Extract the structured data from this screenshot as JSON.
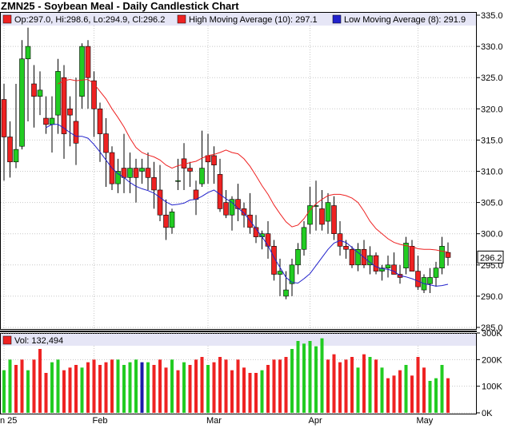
{
  "title": "ZMN25 - Soybean Meal - Daily Candlestick Chart",
  "legend": {
    "ohlc": "Op:297.0, Hi:298.6, Lo:294.9, Cl:296.2",
    "high_ma": "High Moving Average (10): 297.1",
    "low_ma": "Low Moving Average (8): 291.9",
    "volume": "Vol: 132,494"
  },
  "last_price_label": "296.2",
  "colors": {
    "up": "#22cc22",
    "down": "#ee2222",
    "high_ma": "#ee2222",
    "low_ma": "#2222cc",
    "neutral_volume": "#1a1aaa",
    "legend_band": "#e6e6f6",
    "grid": "#c8c8c8"
  },
  "chart_data": [
    {
      "type": "candlestick",
      "x_ticks": [
        "n 25",
        "Feb",
        "Mar",
        "Apr",
        "May"
      ],
      "ylim": [
        285.0,
        335.0
      ],
      "y_ticks": [
        "335.0",
        "330.0",
        "325.0",
        "320.0",
        "315.0",
        "310.0",
        "305.0",
        "300.0",
        "295.0",
        "290.0",
        "285.0"
      ],
      "candles": [
        [
          321.5,
          324.0,
          308.5,
          315.5
        ],
        [
          315.5,
          318.0,
          309.0,
          311.5
        ],
        [
          311.5,
          324.0,
          310.5,
          313.5
        ],
        [
          314.0,
          331.0,
          313.5,
          328.0
        ],
        [
          328.0,
          333.0,
          318.0,
          330.0
        ],
        [
          324.0,
          327.0,
          317.0,
          322.0
        ],
        [
          322.0,
          326.0,
          319.0,
          323.0
        ],
        [
          318.5,
          322.0,
          316.0,
          317.5
        ],
        [
          317.5,
          322.0,
          313.0,
          318.5
        ],
        [
          319.0,
          328.0,
          316.0,
          326.0
        ],
        [
          325.0,
          327.0,
          312.0,
          316.0
        ],
        [
          320.0,
          322.0,
          314.0,
          319.0
        ],
        [
          318.0,
          325.0,
          311.0,
          314.5
        ],
        [
          322.0,
          330.5,
          320.0,
          330.0
        ],
        [
          330.0,
          331.0,
          320.0,
          325.0
        ],
        [
          324.5,
          326.0,
          315.5,
          320.0
        ],
        [
          320.0,
          321.0,
          311.5,
          316.0
        ],
        [
          316.0,
          318.5,
          307.5,
          313.0
        ],
        [
          313.0,
          314.0,
          307.0,
          308.0
        ],
        [
          308.0,
          312.0,
          306.5,
          310.0
        ],
        [
          310.5,
          316.0,
          306.5,
          309.0
        ],
        [
          309.0,
          313.0,
          306.5,
          310.5
        ],
        [
          310.5,
          312.0,
          305.0,
          309.0
        ],
        [
          310.0,
          312.0,
          308.0,
          310.5
        ],
        [
          310.5,
          313.0,
          307.0,
          309.0
        ],
        [
          309.0,
          311.5,
          304.0,
          307.0
        ],
        [
          307.0,
          311.0,
          302.0,
          303.0
        ],
        [
          303.0,
          305.5,
          299.0,
          301.0
        ],
        [
          301.0,
          304.0,
          300.0,
          303.5
        ],
        [
          308.5,
          312.0,
          307.0,
          308.5
        ],
        [
          312.0,
          314.5,
          307.0,
          310.5
        ],
        [
          310.5,
          311.5,
          307.5,
          310.0
        ],
        [
          307.0,
          308.5,
          303.0,
          305.5
        ],
        [
          308.0,
          316.5,
          307.5,
          310.5
        ],
        [
          312.5,
          316.0,
          308.0,
          311.5
        ],
        [
          312.5,
          314.0,
          308.0,
          311.0
        ],
        [
          309.5,
          312.0,
          303.5,
          304.0
        ],
        [
          305.0,
          307.0,
          302.5,
          303.0
        ],
        [
          303.0,
          306.0,
          300.5,
          305.5
        ],
        [
          305.5,
          308.0,
          302.0,
          304.0
        ],
        [
          304.0,
          305.0,
          301.0,
          303.0
        ],
        [
          303.0,
          306.5,
          300.0,
          301.0
        ],
        [
          301.0,
          303.0,
          298.5,
          299.5
        ],
        [
          299.5,
          300.5,
          297.5,
          300.0
        ],
        [
          300.0,
          302.0,
          296.0,
          298.0
        ],
        [
          298.0,
          299.0,
          292.5,
          293.5
        ],
        [
          293.5,
          296.0,
          290.0,
          294.0
        ],
        [
          290.0,
          294.0,
          289.5,
          291.0
        ],
        [
          292.0,
          296.0,
          290.0,
          295.0
        ],
        [
          295.0,
          298.5,
          293.5,
          297.5
        ],
        [
          297.5,
          302.0,
          296.5,
          301.0
        ],
        [
          301.5,
          307.5,
          300.0,
          304.5
        ],
        [
          304.5,
          308.5,
          300.5,
          304.5
        ],
        [
          304.0,
          307.0,
          300.5,
          301.5
        ],
        [
          302.0,
          306.5,
          300.0,
          305.0
        ],
        [
          304.5,
          306.0,
          299.0,
          300.0
        ],
        [
          300.0,
          302.0,
          296.5,
          298.0
        ],
        [
          298.0,
          299.0,
          296.0,
          297.5
        ],
        [
          297.5,
          298.0,
          294.5,
          295.0
        ],
        [
          295.0,
          298.5,
          294.0,
          297.5
        ],
        [
          297.5,
          299.0,
          294.5,
          295.0
        ],
        [
          295.0,
          298.0,
          293.5,
          296.5
        ],
        [
          296.5,
          297.0,
          293.5,
          294.0
        ],
        [
          294.0,
          295.0,
          292.5,
          294.5
        ],
        [
          294.5,
          296.5,
          293.0,
          295.0
        ],
        [
          295.0,
          297.0,
          293.5,
          293.5
        ],
        [
          293.5,
          295.0,
          292.0,
          293.0
        ],
        [
          294.5,
          299.5,
          293.5,
          298.5
        ],
        [
          298.0,
          299.0,
          294.0,
          294.0
        ],
        [
          294.0,
          296.5,
          291.0,
          291.5
        ],
        [
          291.0,
          293.5,
          290.5,
          293.0
        ],
        [
          292.0,
          294.5,
          290.5,
          293.0
        ],
        [
          293.0,
          295.5,
          291.5,
          294.5
        ],
        [
          294.5,
          299.5,
          293.5,
          298.0
        ],
        [
          297.0,
          298.6,
          294.9,
          296.2
        ]
      ],
      "high_moving_average_10": [
        null,
        null,
        null,
        null,
        null,
        null,
        null,
        null,
        null,
        324.0,
        324.5,
        324.7,
        324.5,
        324.6,
        324.7,
        324.0,
        322.8,
        321.6,
        320.0,
        318.6,
        317.1,
        315.3,
        313.8,
        313.0,
        312.6,
        312.3,
        311.8,
        311.0,
        310.5,
        310.9,
        311.1,
        311.4,
        311.6,
        312.1,
        312.5,
        312.7,
        313.0,
        313.4,
        313.0,
        312.8,
        312.0,
        310.8,
        309.3,
        307.7,
        306.3,
        304.6,
        303.2,
        301.9,
        301.1,
        301.4,
        302.4,
        303.8,
        304.8,
        305.5,
        306.1,
        306.3,
        306.3,
        306.1,
        305.7,
        305.0,
        303.6,
        302.0,
        300.8,
        300.0,
        299.2,
        298.6,
        298.3,
        298.1,
        297.9,
        297.6,
        297.5,
        297.5,
        297.4,
        297.2,
        297.1
      ],
      "low_moving_average_8": [
        null,
        null,
        null,
        null,
        null,
        null,
        null,
        317.0,
        317.5,
        317.5,
        316.9,
        316.2,
        315.6,
        315.6,
        315.3,
        314.3,
        313.1,
        311.8,
        310.5,
        309.6,
        309.0,
        308.2,
        307.6,
        307.2,
        306.9,
        306.5,
        305.8,
        305.1,
        304.6,
        304.7,
        304.9,
        305.4,
        305.5,
        306.0,
        306.6,
        307.0,
        306.3,
        305.6,
        305.0,
        304.1,
        303.3,
        302.1,
        300.8,
        299.5,
        298.1,
        296.2,
        294.6,
        293.0,
        292.2,
        292.1,
        292.8,
        293.6,
        294.9,
        296.2,
        297.5,
        298.5,
        298.9,
        298.6,
        297.8,
        297.0,
        296.2,
        295.4,
        294.7,
        294.4,
        294.3,
        294.0,
        293.3,
        293.1,
        292.8,
        292.4,
        292.0,
        291.8,
        291.6,
        291.7,
        291.9
      ],
      "x_tick_positions": [
        0,
        15,
        34,
        51,
        69
      ]
    },
    {
      "type": "bar",
      "title": "Vol: 132,494",
      "ylim": [
        0,
        300000
      ],
      "y_ticks": [
        "300K",
        "200K",
        "100K",
        "0K"
      ],
      "colors": [
        "up",
        "up",
        "down",
        "down",
        "up",
        "down",
        "down",
        "down",
        "up",
        "up",
        "down",
        "down",
        "down",
        "up",
        "down",
        "down",
        "down",
        "down",
        "down",
        "up",
        "up",
        "up",
        "up",
        "neutral",
        "up",
        "down",
        "down",
        "down",
        "up",
        "down",
        "up",
        "down",
        "down",
        "down",
        "up",
        "down",
        "down",
        "down",
        "down",
        "down",
        "down",
        "down",
        "down",
        "up",
        "down",
        "down",
        "down",
        "down",
        "up",
        "up",
        "up",
        "up",
        "up",
        "up",
        "down",
        "down",
        "down",
        "down",
        "down",
        "up",
        "down",
        "up",
        "down",
        "up",
        "down",
        "down",
        "down",
        "up",
        "down",
        "down",
        "down",
        "up",
        "up",
        "up",
        "down"
      ],
      "values": [
        160000,
        200000,
        180000,
        200000,
        160000,
        200000,
        240000,
        150000,
        190000,
        200000,
        160000,
        170000,
        180000,
        170000,
        190000,
        200000,
        180000,
        190000,
        200000,
        200000,
        180000,
        190000,
        200000,
        190000,
        190000,
        180000,
        200000,
        170000,
        200000,
        160000,
        190000,
        180000,
        200000,
        210000,
        180000,
        190000,
        210000,
        200000,
        160000,
        200000,
        170000,
        150000,
        150000,
        160000,
        180000,
        200000,
        200000,
        210000,
        240000,
        270000,
        260000,
        270000,
        250000,
        280000,
        200000,
        220000,
        190000,
        200000,
        210000,
        170000,
        220000,
        210000,
        200000,
        170000,
        130000,
        140000,
        160000,
        180000,
        140000,
        210000,
        170000,
        120000,
        130000,
        180000,
        130000
      ]
    }
  ]
}
